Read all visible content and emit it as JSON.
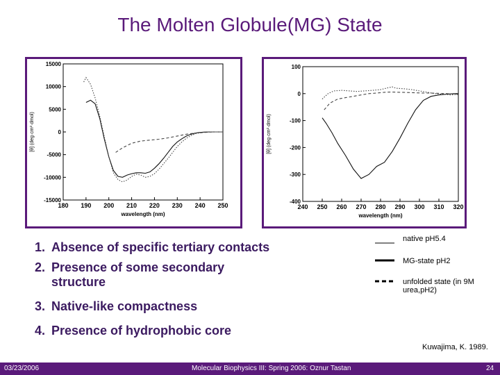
{
  "slide": {
    "title": "The Molten Globule(MG) State",
    "points": [
      {
        "num": "1.",
        "text": "Absence of specific  tertiary contacts"
      },
      {
        "num": "2.",
        "text": "Presence of some secondary structure"
      },
      {
        "num": "3.",
        "text": "Native-like compactness"
      },
      {
        "num": "4.",
        "text": "Presence of hydrophobic core"
      }
    ],
    "legend": [
      {
        "line": "solid",
        "label": "native pH5.4"
      },
      {
        "line": "thick",
        "label": "MG-state pH2"
      },
      {
        "line": "dashed",
        "label": "unfolded state (in 9M urea,pH2)"
      }
    ],
    "citation": "Kuwajima, K. 1989.",
    "footer": {
      "date": "03/23/2006",
      "course": "Molecular Biophysics III: Spring 2006: Oznur Tastan",
      "page": "24"
    }
  },
  "chart_data": [
    {
      "type": "line",
      "title": "",
      "xlabel": "wavelength (nm)",
      "ylabel": "[θ] (deg·cm²·dmol)",
      "xlim": [
        180,
        250
      ],
      "ylim": [
        -15000,
        15000
      ],
      "xticks": [
        180,
        190,
        200,
        210,
        220,
        230,
        240,
        250
      ],
      "yticks": [
        15000,
        10000,
        5000,
        0,
        -5000,
        -10000,
        -15000
      ],
      "series": [
        {
          "style": "solid",
          "x": [
            190,
            192,
            194,
            196,
            198,
            200,
            202,
            204,
            206,
            208,
            210,
            212,
            214,
            216,
            218,
            220,
            222,
            224,
            226,
            228,
            230,
            232,
            234,
            236,
            238,
            240,
            242,
            244,
            246,
            248,
            250
          ],
          "y": [
            6500,
            7000,
            6200,
            3000,
            -1500,
            -5500,
            -8500,
            -9800,
            -10000,
            -9500,
            -9200,
            -9000,
            -9000,
            -9100,
            -8800,
            -8000,
            -7000,
            -5800,
            -4500,
            -3200,
            -2200,
            -1500,
            -900,
            -500,
            -250,
            -100,
            -30,
            0,
            0,
            0,
            0
          ]
        },
        {
          "style": "dotted",
          "x": [
            189,
            190,
            192,
            194,
            196,
            198,
            200,
            202,
            204,
            206,
            208,
            210,
            212,
            214,
            216,
            218,
            220,
            222,
            224,
            226,
            228,
            230,
            232,
            234,
            236,
            238,
            240,
            242,
            244,
            246,
            248,
            250
          ],
          "y": [
            11000,
            12000,
            10500,
            7500,
            3500,
            -1000,
            -5500,
            -9000,
            -10500,
            -11000,
            -10600,
            -9800,
            -9300,
            -9500,
            -10000,
            -9800,
            -9200,
            -8200,
            -7000,
            -5800,
            -4500,
            -3200,
            -2200,
            -1400,
            -800,
            -400,
            -150,
            -50,
            0,
            0,
            0,
            0
          ]
        },
        {
          "style": "dashed",
          "x": [
            203,
            206,
            210,
            214,
            218,
            222,
            226,
            230,
            234,
            238,
            242,
            246,
            250
          ],
          "y": [
            -4500,
            -3500,
            -2500,
            -2000,
            -1800,
            -1600,
            -1300,
            -900,
            -500,
            -250,
            -100,
            0,
            0
          ]
        }
      ]
    },
    {
      "type": "line",
      "title": "",
      "xlabel": "wavelength (nm)",
      "ylabel": "[θ] (deg·cm²·dmol)",
      "xlim": [
        240,
        320
      ],
      "ylim": [
        -400,
        100
      ],
      "xticks": [
        240,
        250,
        260,
        270,
        280,
        290,
        300,
        310,
        320
      ],
      "yticks": [
        100,
        0,
        -100,
        -200,
        -300,
        -400
      ],
      "series": [
        {
          "style": "solid",
          "x": [
            250,
            252,
            255,
            258,
            262,
            266,
            270,
            274,
            278,
            282,
            286,
            290,
            294,
            298,
            302,
            306,
            310,
            314,
            318,
            320
          ],
          "y": [
            -90,
            -110,
            -145,
            -185,
            -230,
            -280,
            -315,
            -300,
            -270,
            -255,
            -215,
            -165,
            -110,
            -60,
            -25,
            -10,
            -5,
            -2,
            0,
            0
          ]
        },
        {
          "style": "dotted",
          "x": [
            250,
            253,
            256,
            260,
            264,
            268,
            272,
            276,
            280,
            284,
            286,
            288,
            292,
            296,
            300,
            304,
            308,
            312,
            316,
            320
          ],
          "y": [
            -20,
            0,
            10,
            12,
            10,
            8,
            10,
            12,
            15,
            22,
            25,
            20,
            18,
            15,
            10,
            5,
            0,
            -2,
            -5,
            -3
          ]
        },
        {
          "style": "dashed",
          "x": [
            251,
            254,
            258,
            262,
            266,
            270,
            274,
            278,
            282,
            286,
            290,
            294,
            298,
            302,
            306,
            310,
            314,
            318,
            320
          ],
          "y": [
            -60,
            -35,
            -20,
            -15,
            -10,
            -5,
            0,
            2,
            5,
            6,
            5,
            4,
            3,
            2,
            2,
            1,
            0,
            -2,
            -2
          ]
        }
      ]
    }
  ]
}
